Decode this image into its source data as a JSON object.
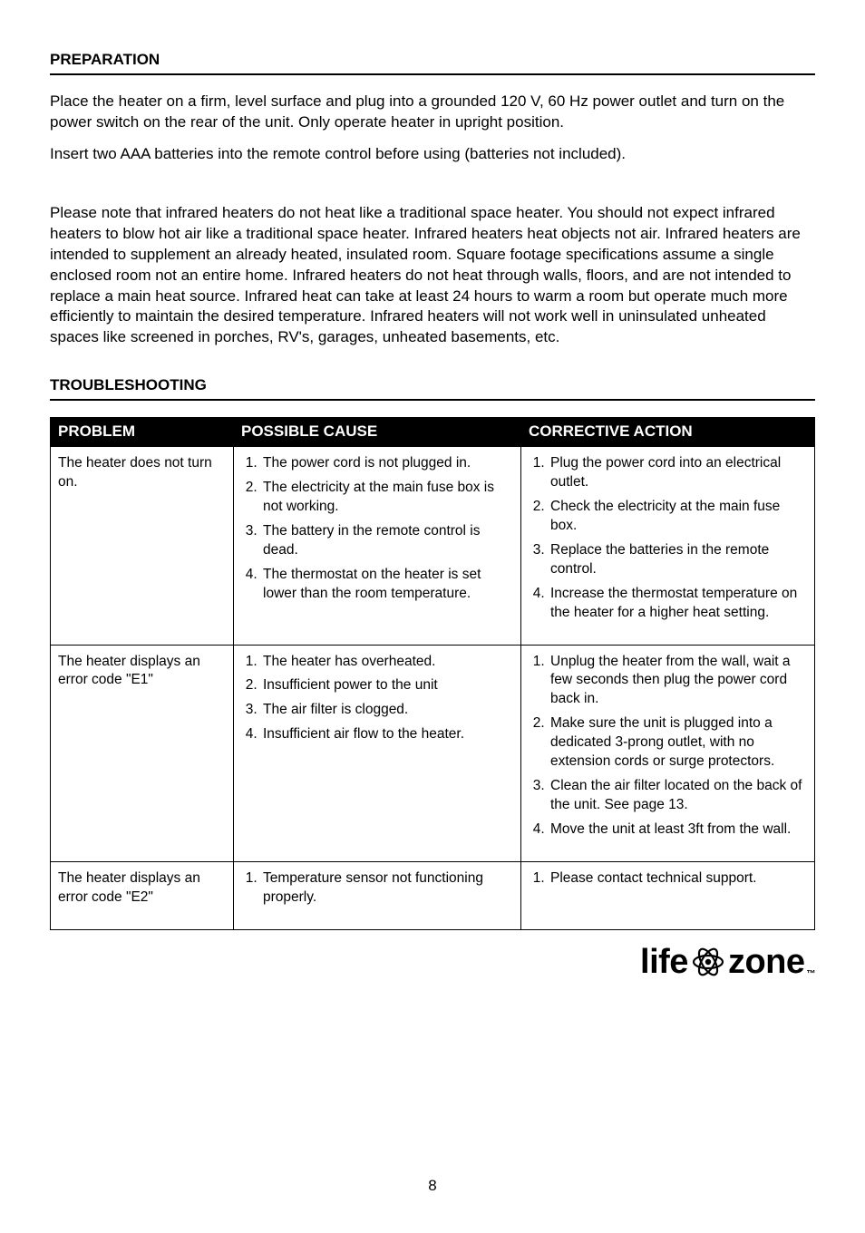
{
  "sections": {
    "preparation": {
      "heading": "PREPARATION",
      "p1": "Place the heater on a firm, level surface and plug into a grounded 120 V, 60 Hz power outlet and turn on the power switch on the rear of the unit. Only operate heater in upright position.",
      "p2": "Insert two AAA batteries into the remote control before using (batteries not included).",
      "p3": "Please note that infrared heaters do not heat like a traditional space heater. You should not expect infrared heaters to blow hot air like a traditional space heater. Infrared heaters heat objects not air. Infrared heaters are intended to supplement an already heated, insulated room. Square footage specifications assume a single enclosed room not an entire home. Infrared heaters do not heat through walls, floors, and are not intended to replace a main heat source. Infrared heat can take at least 24 hours to warm a room but operate much more efficiently to maintain the desired temperature. Infrared heaters will not work well in uninsulated unheated spaces like screened in porches, RV's, garages, unheated basements, etc."
    },
    "troubleshooting": {
      "heading": "TROUBLESHOOTING",
      "columns": {
        "problem": "PROBLEM",
        "cause": "POSSIBLE CAUSE",
        "action": "CORRECTIVE ACTION"
      },
      "rows": [
        {
          "problem": "The heater does not turn on.",
          "causes": [
            "The power cord is not plugged in.",
            "The electricity at the main fuse box is not working.",
            "The battery in the remote control is dead.",
            "The thermostat on the heater is set lower than the room temperature."
          ],
          "actions": [
            "Plug the power cord into an electrical outlet.",
            "Check the electricity at the main fuse box.",
            "Replace the batteries in the remote control.",
            "Increase the thermostat temperature on the heater for a higher heat setting."
          ]
        },
        {
          "problem": "The heater displays an error code \"E1\"",
          "causes": [
            "The heater has overheated.",
            "Insufficient power to the unit",
            "The air filter is clogged.",
            "Insufficient air flow to the heater."
          ],
          "actions": [
            "Unplug the heater from the wall, wait a few seconds then plug the power cord back in.",
            "Make sure the unit is plugged into a dedicated 3-prong outlet, with no extension cords or surge protectors.",
            "Clean the air filter located on the back of the unit. See page 13.",
            "Move the unit at least 3ft from the wall."
          ]
        },
        {
          "problem": "The heater displays an error code \"E2\"",
          "causes": [
            "Temperature sensor not functioning properly."
          ],
          "actions": [
            "Please contact technical support."
          ]
        }
      ]
    }
  },
  "page_number": "8",
  "logo": {
    "left": "life",
    "right": "zone",
    "tm": "™"
  }
}
